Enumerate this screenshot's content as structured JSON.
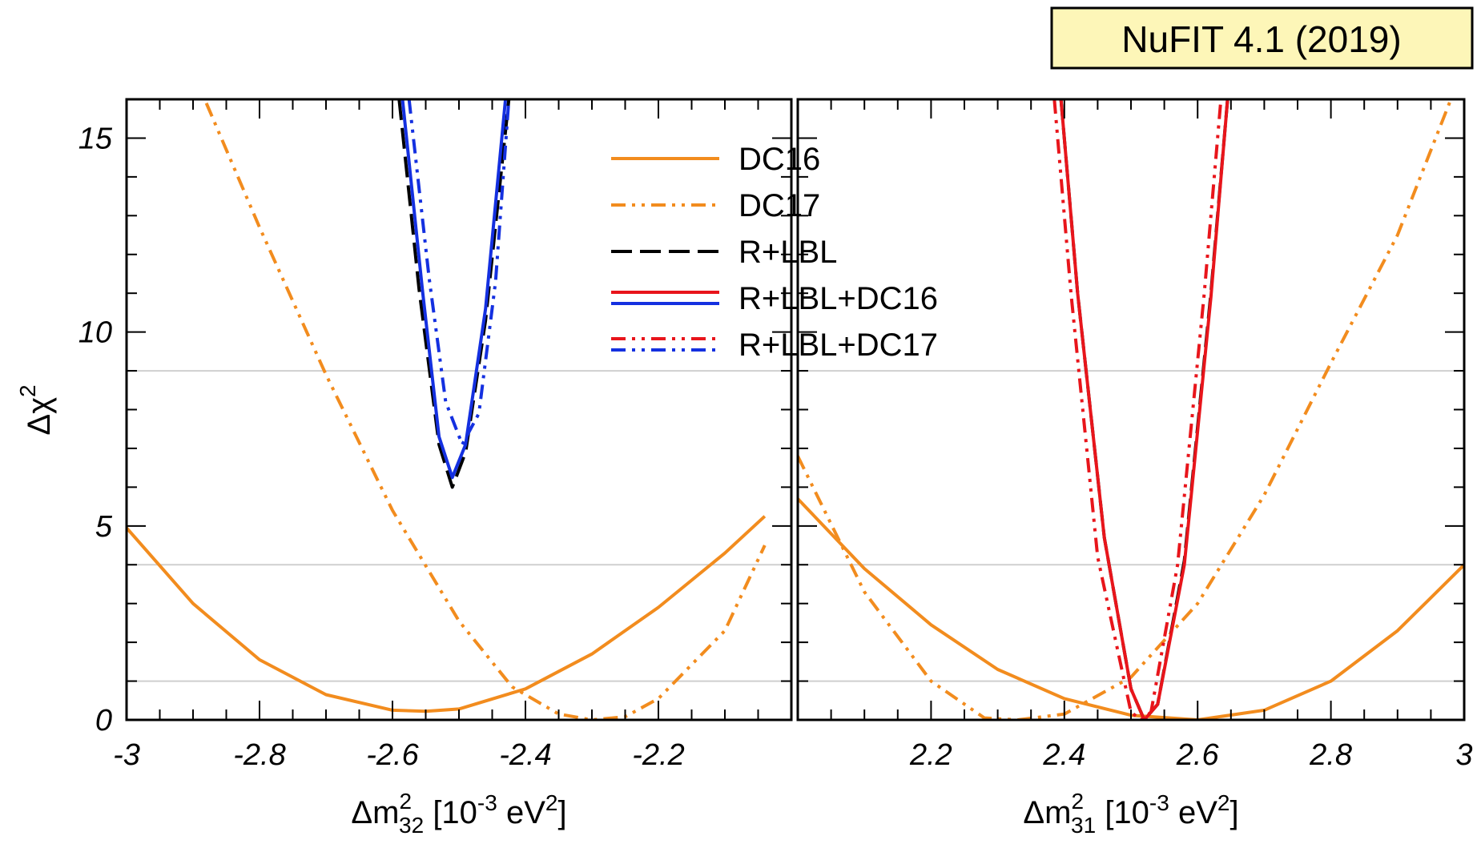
{
  "badge": {
    "text": "NuFIT 4.1 (2019)",
    "background": "#fdf6b8"
  },
  "chart_data": {
    "type": "line",
    "panels": [
      {
        "id": "left",
        "xlim": [
          -3.0,
          -2.0
        ],
        "ylim": [
          0,
          16
        ],
        "xticks": [
          -3,
          -2.8,
          -2.6,
          -2.4,
          -2.2
        ],
        "xtick_labels": [
          "-3",
          "-2.8",
          "-2.6",
          "-2.4",
          "-2.2"
        ],
        "xlabel": {
          "base": "Δm",
          "sup": "2",
          "sub": "32",
          "unit_pre": " [10",
          "unit_exp": "-3",
          "unit_mid": " eV",
          "unit_exp2": "2",
          "unit_post": "]"
        }
      },
      {
        "id": "right",
        "xlim": [
          2.0,
          3.0
        ],
        "ylim": [
          0,
          16
        ],
        "xticks": [
          2.2,
          2.4,
          2.6,
          2.8,
          3
        ],
        "xtick_labels": [
          "2.2",
          "2.4",
          "2.6",
          "2.8",
          "3"
        ],
        "xlabel": {
          "base": "Δm",
          "sup": "2",
          "sub": "31",
          "unit_pre": " [10",
          "unit_exp": "-3",
          "unit_mid": " eV",
          "unit_exp2": "2",
          "unit_post": "]"
        }
      }
    ],
    "yticks": [
      0,
      5,
      10,
      15
    ],
    "ytick_labels": [
      "0",
      "5",
      "10",
      "15"
    ],
    "ylabel": {
      "base": "Δχ",
      "sup": "2"
    },
    "hlines": [
      1,
      4,
      9
    ],
    "grid": false,
    "legend_placement": "top-center",
    "legend": [
      {
        "label": "DC16",
        "colors": [
          "#f28c1e"
        ],
        "dash": "solid"
      },
      {
        "label": "DC17",
        "colors": [
          "#f28c1e"
        ],
        "dash": "dashdotdot"
      },
      {
        "label": "R+LBL",
        "colors": [
          "#000000"
        ],
        "dash": "dashed"
      },
      {
        "label": "R+LBL+DC16",
        "colors": [
          "#e8151b",
          "#1430e0"
        ],
        "dash": "solid"
      },
      {
        "label": "R+LBL+DC17",
        "colors": [
          "#e8151b",
          "#1430e0"
        ],
        "dash": "dashdotdot"
      }
    ],
    "series": [
      {
        "name": "DC16",
        "panel": "left",
        "color": "#f28c1e",
        "dash": "solid",
        "points": [
          [
            -3.0,
            4.95
          ],
          [
            -2.9,
            3.0
          ],
          [
            -2.8,
            1.55
          ],
          [
            -2.7,
            0.65
          ],
          [
            -2.6,
            0.25
          ],
          [
            -2.55,
            0.22
          ],
          [
            -2.5,
            0.28
          ],
          [
            -2.4,
            0.8
          ],
          [
            -2.3,
            1.7
          ],
          [
            -2.2,
            2.9
          ],
          [
            -2.1,
            4.3
          ],
          [
            -2.04,
            5.25
          ]
        ]
      },
      {
        "name": "DC16",
        "panel": "right",
        "color": "#f28c1e",
        "dash": "solid",
        "points": [
          [
            2.0,
            5.7
          ],
          [
            2.1,
            3.9
          ],
          [
            2.2,
            2.45
          ],
          [
            2.3,
            1.3
          ],
          [
            2.4,
            0.55
          ],
          [
            2.5,
            0.12
          ],
          [
            2.6,
            0.0
          ],
          [
            2.7,
            0.25
          ],
          [
            2.8,
            1.0
          ],
          [
            2.9,
            2.3
          ],
          [
            3.0,
            4.0
          ]
        ]
      },
      {
        "name": "DC17",
        "panel": "left",
        "color": "#f28c1e",
        "dash": "dashdotdot",
        "points": [
          [
            -2.88,
            15.9
          ],
          [
            -2.8,
            12.7
          ],
          [
            -2.7,
            8.9
          ],
          [
            -2.6,
            5.4
          ],
          [
            -2.5,
            2.55
          ],
          [
            -2.42,
            0.85
          ],
          [
            -2.35,
            0.15
          ],
          [
            -2.3,
            0.0
          ],
          [
            -2.25,
            0.08
          ],
          [
            -2.2,
            0.55
          ],
          [
            -2.1,
            2.3
          ],
          [
            -2.04,
            4.5
          ]
        ]
      },
      {
        "name": "DC17",
        "panel": "right",
        "color": "#f28c1e",
        "dash": "dashdotdot",
        "points": [
          [
            2.0,
            6.8
          ],
          [
            2.1,
            3.3
          ],
          [
            2.2,
            1.0
          ],
          [
            2.28,
            0.05
          ],
          [
            2.33,
            0.0
          ],
          [
            2.4,
            0.15
          ],
          [
            2.5,
            1.1
          ],
          [
            2.6,
            3.0
          ],
          [
            2.7,
            5.8
          ],
          [
            2.8,
            9.2
          ],
          [
            2.9,
            12.5
          ],
          [
            2.98,
            16.0
          ]
        ]
      },
      {
        "name": "R+LBL",
        "panel": "left",
        "color": "#000000",
        "dash": "dashed",
        "points": [
          [
            -2.59,
            16.0
          ],
          [
            -2.56,
            11.1
          ],
          [
            -2.53,
            7.1
          ],
          [
            -2.51,
            6.0
          ],
          [
            -2.49,
            6.9
          ],
          [
            -2.46,
            10.3
          ],
          [
            -2.425,
            16.0
          ]
        ]
      },
      {
        "name": "R+LBL",
        "panel": "right",
        "color": "#000000",
        "dash": "dashed",
        "points": [
          [
            2.395,
            16.0
          ],
          [
            2.42,
            11.0
          ],
          [
            2.46,
            4.7
          ],
          [
            2.5,
            0.8
          ],
          [
            2.52,
            0.0
          ],
          [
            2.54,
            0.4
          ],
          [
            2.58,
            4.1
          ],
          [
            2.62,
            11.0
          ],
          [
            2.645,
            16.0
          ]
        ]
      },
      {
        "name": "R+LBL+DC16",
        "panel": "left",
        "color": "#1430e0",
        "dash": "solid",
        "points": [
          [
            -2.585,
            16.0
          ],
          [
            -2.555,
            11.1
          ],
          [
            -2.53,
            7.3
          ],
          [
            -2.51,
            6.25
          ],
          [
            -2.49,
            7.1
          ],
          [
            -2.46,
            10.6
          ],
          [
            -2.43,
            16.0
          ]
        ]
      },
      {
        "name": "R+LBL+DC16",
        "panel": "right",
        "color": "#e8151b",
        "dash": "solid",
        "points": [
          [
            2.395,
            16.0
          ],
          [
            2.42,
            11.0
          ],
          [
            2.46,
            4.7
          ],
          [
            2.5,
            0.8
          ],
          [
            2.52,
            0.0
          ],
          [
            2.54,
            0.4
          ],
          [
            2.58,
            4.0
          ],
          [
            2.62,
            10.9
          ],
          [
            2.645,
            16.0
          ]
        ]
      },
      {
        "name": "R+LBL+DC17",
        "panel": "left",
        "color": "#1430e0",
        "dash": "dashdotdot",
        "points": [
          [
            -2.575,
            16.0
          ],
          [
            -2.545,
            11.4
          ],
          [
            -2.52,
            8.2
          ],
          [
            -2.495,
            7.1
          ],
          [
            -2.47,
            7.9
          ],
          [
            -2.445,
            11.3
          ],
          [
            -2.425,
            16.0
          ]
        ]
      },
      {
        "name": "R+LBL+DC17",
        "panel": "right",
        "color": "#e8151b",
        "dash": "dashdotdot",
        "points": [
          [
            2.385,
            16.0
          ],
          [
            2.41,
            11.0
          ],
          [
            2.45,
            4.2
          ],
          [
            2.5,
            0.2
          ],
          [
            2.515,
            0.0
          ],
          [
            2.53,
            0.2
          ],
          [
            2.57,
            4.0
          ],
          [
            2.61,
            11.0
          ],
          [
            2.635,
            16.0
          ]
        ]
      }
    ]
  }
}
